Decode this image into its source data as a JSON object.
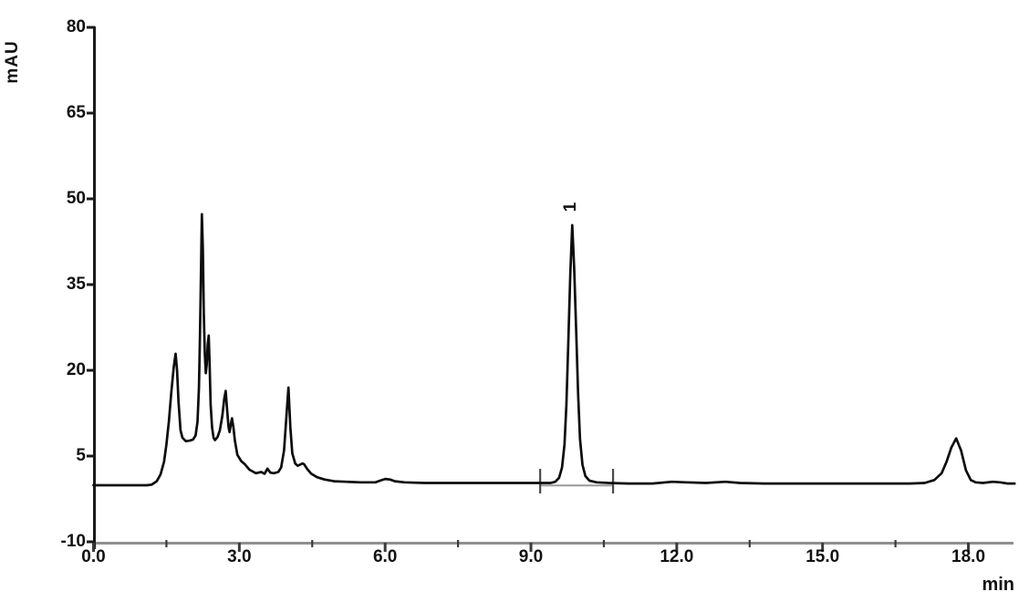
{
  "chart_data": {
    "type": "line",
    "title": "",
    "xlabel": "min",
    "ylabel": "mAU",
    "xlim": [
      0,
      19
    ],
    "ylim": [
      -10,
      80
    ],
    "grid": false,
    "legend": "none",
    "colors": {
      "trace": "#0d0d0d",
      "y_axis": "#1a1a1a",
      "x_axis": "#8f8f8f",
      "tick": "#3a3a3a",
      "integration_mark": "#4a4a4a",
      "integration_baseline": "#9a9a9a",
      "text": "#111111"
    },
    "x_axis_ticks": {
      "values": [
        0,
        3,
        6,
        9,
        12,
        15,
        18
      ],
      "labels": [
        "0.0",
        "3.0",
        "6.0",
        "9.0",
        "12.0",
        "15.0",
        "18.0"
      ],
      "minor_values": [
        1.5,
        4.5,
        7.5,
        10.5,
        13.5,
        16.5
      ]
    },
    "y_axis_ticks": {
      "values": [
        80,
        65,
        50,
        35,
        20,
        5,
        -10
      ],
      "labels": [
        "80",
        "65",
        "50",
        "35",
        "20",
        "5",
        "-10"
      ]
    },
    "peaks": [
      {
        "label": "1",
        "time_min": 9.85,
        "height_mau": 45.4
      }
    ],
    "unlabeled_peaks": [
      {
        "time_min": 1.69,
        "height_mau": 22.9
      },
      {
        "time_min": 2.23,
        "height_mau": 47.3
      },
      {
        "time_min": 2.37,
        "height_mau": 26.1
      },
      {
        "time_min": 2.72,
        "height_mau": 16.4
      },
      {
        "time_min": 2.85,
        "height_mau": 11.6
      },
      {
        "time_min": 4.01,
        "height_mau": 17.0
      },
      {
        "time_min": 4.33,
        "height_mau": 3.6
      },
      {
        "time_min": 6.0,
        "height_mau": 1.0
      },
      {
        "time_min": 17.75,
        "height_mau": 8.1
      }
    ],
    "integration": {
      "start_min": 9.19,
      "end_min": 10.69,
      "baseline_mau": -0.15
    },
    "series": [
      {
        "name": "detector-signal",
        "points": [
          [
            0.0,
            -0.1
          ],
          [
            0.3,
            -0.1
          ],
          [
            0.6,
            -0.1
          ],
          [
            0.9,
            -0.1
          ],
          [
            1.1,
            -0.1
          ],
          [
            1.2,
            0.0
          ],
          [
            1.3,
            0.6
          ],
          [
            1.38,
            1.8
          ],
          [
            1.45,
            4.0
          ],
          [
            1.5,
            7.0
          ],
          [
            1.55,
            11.0
          ],
          [
            1.6,
            16.0
          ],
          [
            1.65,
            20.5
          ],
          [
            1.69,
            22.9
          ],
          [
            1.72,
            20.0
          ],
          [
            1.75,
            14.5
          ],
          [
            1.79,
            9.5
          ],
          [
            1.83,
            8.2
          ],
          [
            1.9,
            7.6
          ],
          [
            1.98,
            7.7
          ],
          [
            2.05,
            7.9
          ],
          [
            2.1,
            8.6
          ],
          [
            2.14,
            11.0
          ],
          [
            2.17,
            17.0
          ],
          [
            2.19,
            26.0
          ],
          [
            2.21,
            36.0
          ],
          [
            2.23,
            47.3
          ],
          [
            2.25,
            41.0
          ],
          [
            2.27,
            30.0
          ],
          [
            2.29,
            23.0
          ],
          [
            2.31,
            19.5
          ],
          [
            2.33,
            21.0
          ],
          [
            2.35,
            24.5
          ],
          [
            2.37,
            26.1
          ],
          [
            2.39,
            21.0
          ],
          [
            2.41,
            14.0
          ],
          [
            2.44,
            10.0
          ],
          [
            2.47,
            8.2
          ],
          [
            2.5,
            7.8
          ],
          [
            2.55,
            8.3
          ],
          [
            2.6,
            9.5
          ],
          [
            2.65,
            12.0
          ],
          [
            2.69,
            15.0
          ],
          [
            2.72,
            16.4
          ],
          [
            2.75,
            13.0
          ],
          [
            2.78,
            10.0
          ],
          [
            2.8,
            9.2
          ],
          [
            2.83,
            10.8
          ],
          [
            2.85,
            11.6
          ],
          [
            2.88,
            10.0
          ],
          [
            2.91,
            7.7
          ],
          [
            2.96,
            5.2
          ],
          [
            3.04,
            4.1
          ],
          [
            3.11,
            3.6
          ],
          [
            3.21,
            2.6
          ],
          [
            3.34,
            2.0
          ],
          [
            3.45,
            2.2
          ],
          [
            3.52,
            1.9
          ],
          [
            3.58,
            2.8
          ],
          [
            3.64,
            2.1
          ],
          [
            3.71,
            2.0
          ],
          [
            3.8,
            2.2
          ],
          [
            3.86,
            3.0
          ],
          [
            3.92,
            6.0
          ],
          [
            3.97,
            12.0
          ],
          [
            4.01,
            17.0
          ],
          [
            4.05,
            10.0
          ],
          [
            4.09,
            5.5
          ],
          [
            4.15,
            3.7
          ],
          [
            4.2,
            3.3
          ],
          [
            4.25,
            3.5
          ],
          [
            4.3,
            3.7
          ],
          [
            4.33,
            3.6
          ],
          [
            4.4,
            2.7
          ],
          [
            4.48,
            1.9
          ],
          [
            4.6,
            1.3
          ],
          [
            4.75,
            0.9
          ],
          [
            4.95,
            0.6
          ],
          [
            5.2,
            0.5
          ],
          [
            5.5,
            0.4
          ],
          [
            5.8,
            0.4
          ],
          [
            5.9,
            0.7
          ],
          [
            6.0,
            1.0
          ],
          [
            6.1,
            0.9
          ],
          [
            6.2,
            0.6
          ],
          [
            6.4,
            0.4
          ],
          [
            6.8,
            0.3
          ],
          [
            7.3,
            0.3
          ],
          [
            7.8,
            0.3
          ],
          [
            8.3,
            0.3
          ],
          [
            8.8,
            0.3
          ],
          [
            9.2,
            0.3
          ],
          [
            9.4,
            0.3
          ],
          [
            9.5,
            0.5
          ],
          [
            9.58,
            1.2
          ],
          [
            9.64,
            3.0
          ],
          [
            9.69,
            7.0
          ],
          [
            9.73,
            14.0
          ],
          [
            9.77,
            25.0
          ],
          [
            9.81,
            37.0
          ],
          [
            9.85,
            45.4
          ],
          [
            9.89,
            38.0
          ],
          [
            9.93,
            27.0
          ],
          [
            9.97,
            16.0
          ],
          [
            10.01,
            8.0
          ],
          [
            10.06,
            3.5
          ],
          [
            10.12,
            1.5
          ],
          [
            10.2,
            0.7
          ],
          [
            10.35,
            0.4
          ],
          [
            10.6,
            0.3
          ],
          [
            11.0,
            0.2
          ],
          [
            11.5,
            0.2
          ],
          [
            11.9,
            0.5
          ],
          [
            12.2,
            0.4
          ],
          [
            12.6,
            0.3
          ],
          [
            13.0,
            0.5
          ],
          [
            13.3,
            0.3
          ],
          [
            13.8,
            0.2
          ],
          [
            14.3,
            0.2
          ],
          [
            14.8,
            0.2
          ],
          [
            15.3,
            0.2
          ],
          [
            15.8,
            0.2
          ],
          [
            16.3,
            0.2
          ],
          [
            16.8,
            0.2
          ],
          [
            17.1,
            0.3
          ],
          [
            17.3,
            0.8
          ],
          [
            17.45,
            2.0
          ],
          [
            17.55,
            4.0
          ],
          [
            17.65,
            6.5
          ],
          [
            17.75,
            8.1
          ],
          [
            17.85,
            6.0
          ],
          [
            17.95,
            2.5
          ],
          [
            18.05,
            0.8
          ],
          [
            18.15,
            0.4
          ],
          [
            18.3,
            0.3
          ],
          [
            18.5,
            0.5
          ],
          [
            18.65,
            0.4
          ],
          [
            18.8,
            0.2
          ],
          [
            18.95,
            0.2
          ]
        ]
      }
    ]
  }
}
